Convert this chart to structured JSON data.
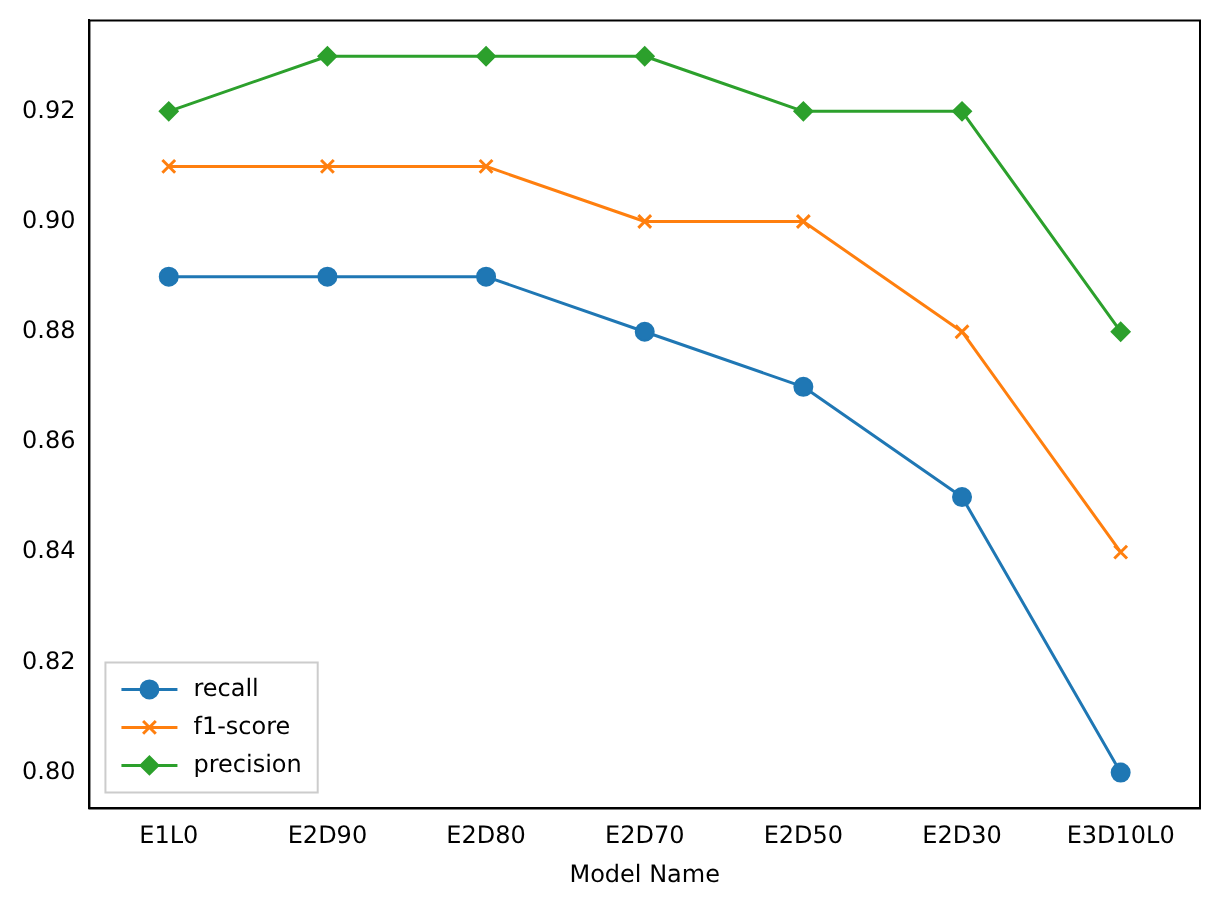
{
  "chart_data": {
    "type": "line",
    "xlabel": "Model Name",
    "categories": [
      "E1L0",
      "E2D90",
      "E2D80",
      "E2D70",
      "E2D50",
      "E2D30",
      "E3D10L0"
    ],
    "series": [
      {
        "name": "recall",
        "color": "#1f77b4",
        "marker": "circle",
        "values": [
          0.89,
          0.89,
          0.89,
          0.88,
          0.87,
          0.85,
          0.8
        ]
      },
      {
        "name": "f1-score",
        "color": "#ff7f0e",
        "marker": "cross",
        "values": [
          0.91,
          0.91,
          0.91,
          0.9,
          0.9,
          0.88,
          0.84
        ]
      },
      {
        "name": "precision",
        "color": "#2ca02c",
        "marker": "diamond",
        "values": [
          0.92,
          0.93,
          0.93,
          0.93,
          0.92,
          0.92,
          0.88
        ]
      }
    ],
    "ylim": [
      0.7935,
      0.9365
    ],
    "yticks": [
      {
        "value": 0.8,
        "label": "0.80"
      },
      0.82,
      0.84,
      0.86,
      0.88,
      {
        "value": 0.9,
        "label": "0.90"
      },
      0.92
    ],
    "grid": false,
    "legend": "bottom left",
    "line_style": "solid"
  }
}
